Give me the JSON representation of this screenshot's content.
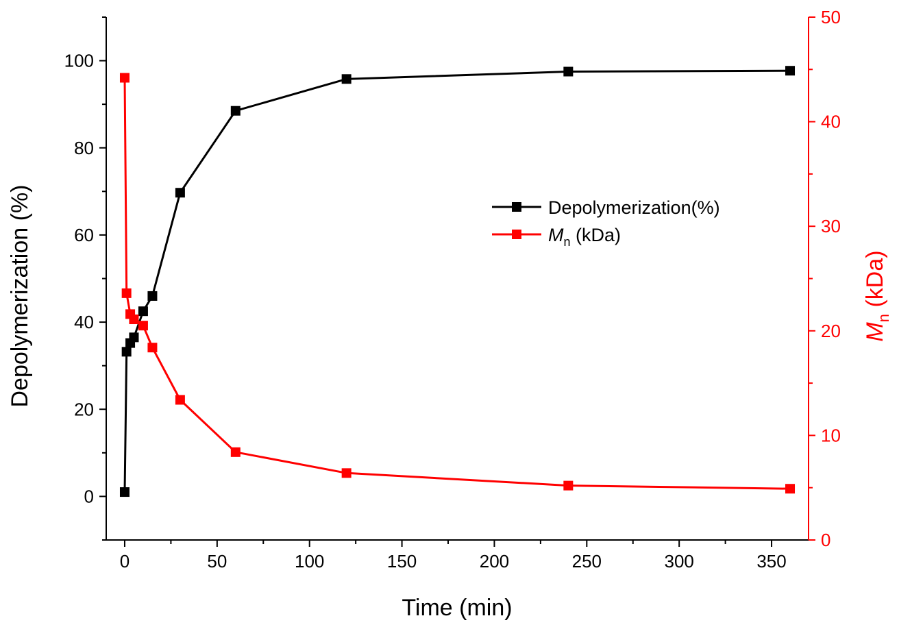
{
  "chart_data": {
    "type": "line",
    "x": [
      0,
      1,
      3,
      5,
      10,
      15,
      30,
      60,
      120,
      240,
      360
    ],
    "xlabel": "Time (min)",
    "xlim": [
      -10,
      370
    ],
    "xticks": [
      0,
      50,
      100,
      150,
      200,
      250,
      300,
      350
    ],
    "y_left": {
      "label": "Depolymerization (%)",
      "lim": [
        -10,
        110
      ],
      "ticks": [
        0,
        20,
        40,
        60,
        80,
        100
      ],
      "color": "#000000"
    },
    "y_right": {
      "label_main": "M",
      "label_sub": "n",
      "label_rest": " (kDa)",
      "lim": [
        0,
        50
      ],
      "ticks": [
        0,
        10,
        20,
        30,
        40,
        50
      ],
      "color": "#ff0000"
    },
    "series": [
      {
        "name": "Depolymerization(%)",
        "axis": "left",
        "color": "#000000",
        "values": [
          1,
          33.2,
          35.2,
          36.5,
          42.5,
          46.0,
          69.7,
          88.5,
          95.8,
          97.5,
          97.7
        ]
      },
      {
        "name_main": "M",
        "name_sub": "n",
        "name_rest": " (kDa)",
        "axis": "right",
        "color": "#ff0000",
        "values": [
          44.2,
          23.6,
          21.6,
          21.1,
          20.5,
          18.4,
          13.4,
          8.4,
          6.4,
          5.2,
          4.9
        ]
      }
    ],
    "legend_position": "center-right",
    "grid": false
  }
}
